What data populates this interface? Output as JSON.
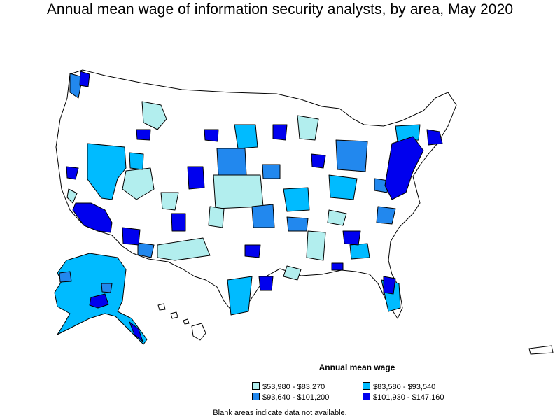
{
  "title": "Annual mean wage of information security analysts, by area, May 2020",
  "legend": {
    "title": "Annual mean wage",
    "items": [
      {
        "label": "$53,980 - $83,270",
        "color": "#b2eeee"
      },
      {
        "label": "$83,580 - $93,540",
        "color": "#00bbff"
      },
      {
        "label": "$93,640 - $101,200",
        "color": "#2288ee"
      },
      {
        "label": "$101,930 - $147,160",
        "color": "#0000ee"
      }
    ]
  },
  "footnote": "Blank areas indicate data not available."
}
